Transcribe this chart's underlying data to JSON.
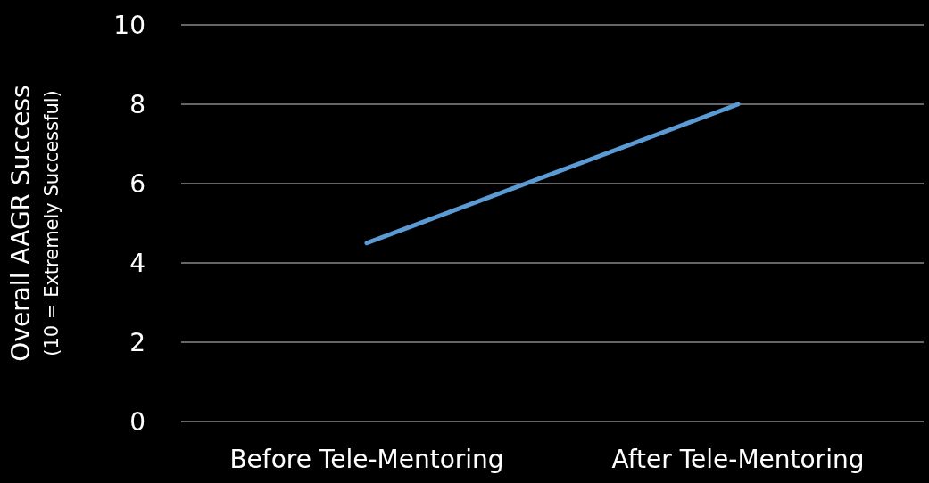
{
  "chart_data": {
    "type": "line",
    "ylabel": "Overall AAGR Success\n(10 = Extremely Successful)",
    "categories": [
      "Before Tele-Mentoring",
      "After Tele-Mentoring"
    ],
    "series": [
      {
        "color": "#5b9bd5",
        "values": [
          4.5,
          8
        ]
      }
    ],
    "ylim": [
      0,
      10
    ],
    "yticks": [
      0,
      2,
      4,
      6,
      8,
      10
    ],
    "grid": "y",
    "marker": "none",
    "line_style": "solid"
  }
}
